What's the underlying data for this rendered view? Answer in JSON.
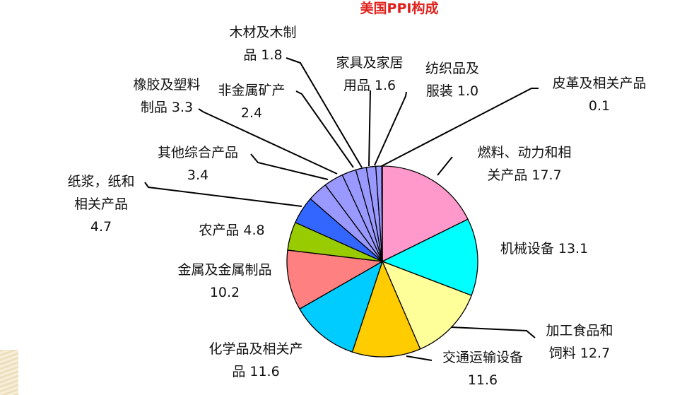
{
  "chart_data": {
    "type": "pie",
    "title": "美国PPI构成",
    "slices": [
      {
        "label_lines": [
          "燃料、动力和相",
          "关产品 17.7"
        ],
        "name": "燃料、动力和相关产品",
        "value": 17.7,
        "color": "#ff99cc"
      },
      {
        "label_lines": [
          "机械设备 13.1"
        ],
        "name": "机械设备",
        "value": 13.1,
        "color": "#00ffff"
      },
      {
        "label_lines": [
          "加工食品和",
          "饲料 12.7"
        ],
        "name": "加工食品和饲料",
        "value": 12.7,
        "color": "#ffff99"
      },
      {
        "label_lines": [
          "交通运输设备",
          "11.6"
        ],
        "name": "交通运输设备",
        "value": 11.6,
        "color": "#ffcc00"
      },
      {
        "label_lines": [
          "化学品及相关产",
          "品 11.6"
        ],
        "name": "化学品及相关产品",
        "value": 11.6,
        "color": "#00ccff"
      },
      {
        "label_lines": [
          "金属及金属制品",
          "10.2"
        ],
        "name": "金属及金属制品",
        "value": 10.2,
        "color": "#ff8080"
      },
      {
        "label_lines": [
          "农产品 4.8"
        ],
        "name": "农产品",
        "value": 4.8,
        "color": "#99cc00"
      },
      {
        "label_lines": [
          "纸浆，纸和",
          "相关产品",
          "4.7"
        ],
        "name": "纸浆，纸和相关产品",
        "value": 4.7,
        "color": "#3366ff"
      },
      {
        "label_lines": [
          "其他综合产品",
          "3.4"
        ],
        "name": "其他综合产品",
        "value": 3.4,
        "color": "#9999ff"
      },
      {
        "label_lines": [
          "橡胶及塑料",
          "制品 3.3"
        ],
        "name": "橡胶及塑料制品",
        "value": 3.3,
        "color": "#9999ff"
      },
      {
        "label_lines": [
          "非金属矿产",
          "2.4"
        ],
        "name": "非金属矿产",
        "value": 2.4,
        "color": "#9999ff"
      },
      {
        "label_lines": [
          "木材及木制",
          "品 1.8"
        ],
        "name": "木材及木制品",
        "value": 1.8,
        "color": "#9999ff"
      },
      {
        "label_lines": [
          "家具及家居",
          "用品 1.6"
        ],
        "name": "家具及家居用品",
        "value": 1.6,
        "color": "#9999ff"
      },
      {
        "label_lines": [
          "纺织品及",
          "服装 1.0"
        ],
        "name": "纺织品及服装",
        "value": 1.0,
        "color": "#9999ff"
      },
      {
        "label_lines": [
          "皮革及相关产品",
          "0.1"
        ],
        "name": "皮革及相关产品",
        "value": 0.1,
        "color": "#9999ff"
      }
    ],
    "start_angle": "12 o'clock",
    "direction": "clockwise",
    "slice_border_color": "#000000",
    "leader_line_color": "#000000"
  }
}
